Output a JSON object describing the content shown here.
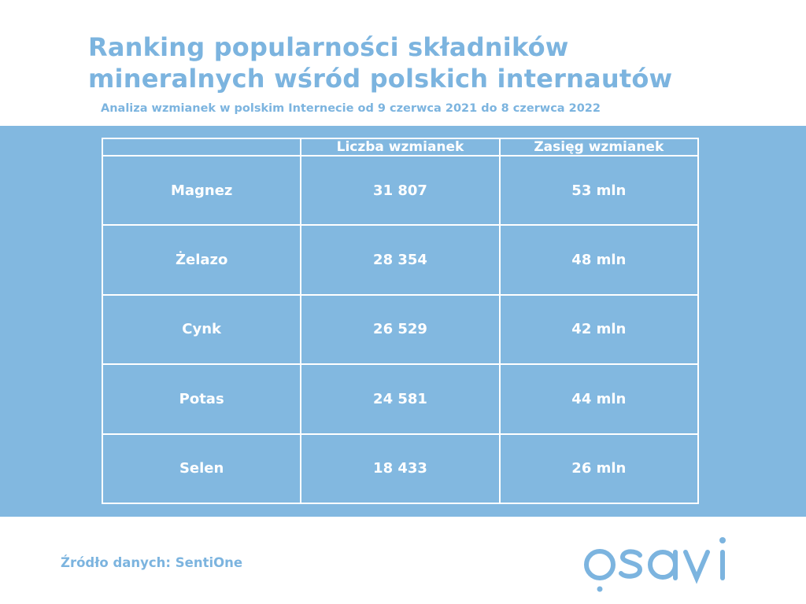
{
  "header": {
    "title": "Ranking popularności składników mineralnych wśród polskich internautów",
    "subtitle": "Analiza wzmianek w polskim Internecie od 9 czerwca 2021 do 8 czerwca 2022"
  },
  "table": {
    "columns": [
      "",
      "Liczba wzmianek",
      "Zasięg wzmianek"
    ],
    "rows": [
      [
        "Magnez",
        "31 807",
        "53 mln"
      ],
      [
        "Żelazo",
        "28 354",
        "48 mln"
      ],
      [
        "Cynk",
        "26 529",
        "42 mln"
      ],
      [
        "Potas",
        "24 581",
        "44 mln"
      ],
      [
        "Selen",
        "18 433",
        "26 mln"
      ]
    ]
  },
  "footer": {
    "source": "Źródło danych: SentiOne",
    "logo_text": "osavi"
  },
  "colors": {
    "accent": "#7cb4df",
    "band": "#82b8e0",
    "text_on_band": "#ffffff",
    "background": "#ffffff"
  }
}
